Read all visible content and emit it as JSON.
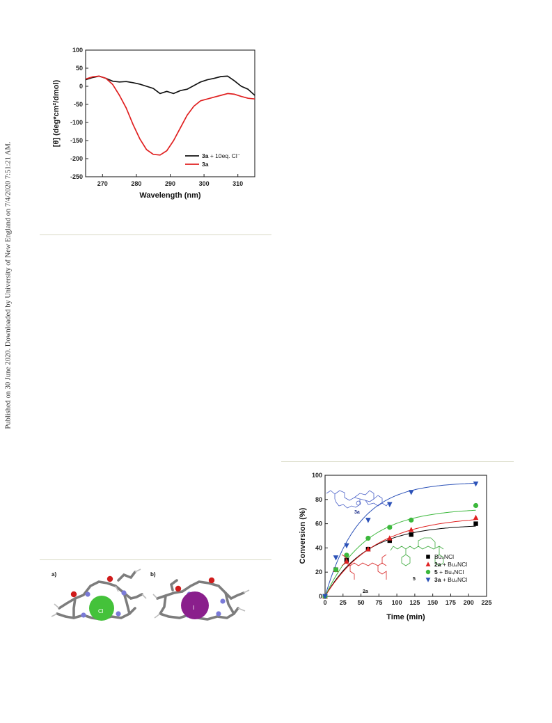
{
  "sidebar": {
    "text": "Published on 30 June 2020. Downloaded by University of New England on 7/4/2020 7:51:21 AM."
  },
  "figure_cd": {
    "colors": {
      "series_a": "#111111",
      "series_b": "#e02020"
    }
  },
  "figure_mol": {
    "label_a": "a)",
    "label_b": "b)",
    "ion_a": "Cl",
    "ion_b": "I",
    "colors": {
      "cl": "#44c23a",
      "i": "#8a1f8c",
      "carbon": "#8a8a8a",
      "oxygen": "#d01c1c",
      "nitrogen": "#7a7ad8"
    }
  },
  "figure_conv": {
    "structure_labels": {
      "s3a": "3a",
      "s2a": "2a",
      "s5": "5"
    },
    "colors": {
      "bu": "#000000",
      "s2a": "#e02020",
      "s5": "#3cb83c",
      "s3a": "#2c52b8"
    }
  },
  "chart_data": [
    {
      "type": "line",
      "title": "",
      "xlabel": "Wavelength (nm)",
      "ylabel": "[θ] (deg*cm²/dmol)",
      "xlim": [
        265,
        315
      ],
      "ylim": [
        -250,
        100
      ],
      "xticks": [
        270,
        280,
        290,
        300,
        310
      ],
      "yticks": [
        100,
        50,
        0,
        -50,
        -100,
        -150,
        -200,
        -250
      ],
      "legend_position": "bottom-right",
      "series": [
        {
          "name": "3a + 10eq. Cl⁻",
          "legend_bold": "3a",
          "legend_rest": " + 10eq. Cl⁻",
          "color": "#111111",
          "x": [
            265,
            267,
            269,
            271,
            273,
            275,
            277,
            279,
            281,
            283,
            285,
            287,
            289,
            291,
            293,
            295,
            297,
            299,
            301,
            303,
            305,
            307,
            309,
            311,
            313,
            315
          ],
          "y": [
            18,
            24,
            28,
            22,
            14,
            12,
            13,
            10,
            6,
            0,
            -6,
            -20,
            -14,
            -20,
            -12,
            -8,
            2,
            12,
            18,
            22,
            27,
            28,
            15,
            0,
            -8,
            -25
          ]
        },
        {
          "name": "3a",
          "legend_bold": "3a",
          "legend_rest": "",
          "color": "#e02020",
          "x": [
            265,
            267,
            269,
            271,
            273,
            275,
            277,
            279,
            281,
            283,
            285,
            287,
            289,
            291,
            293,
            295,
            297,
            299,
            301,
            303,
            305,
            307,
            309,
            311,
            313,
            315
          ],
          "y": [
            20,
            26,
            28,
            22,
            5,
            -25,
            -60,
            -105,
            -145,
            -175,
            -188,
            -190,
            -178,
            -150,
            -115,
            -80,
            -55,
            -40,
            -35,
            -30,
            -25,
            -20,
            -22,
            -28,
            -33,
            -35
          ]
        }
      ]
    },
    {
      "type": "scatter",
      "title": "",
      "xlabel": "Time (min)",
      "ylabel": "Conversion (%)",
      "xlim": [
        0,
        225
      ],
      "ylim": [
        0,
        100
      ],
      "xticks": [
        0,
        25,
        50,
        75,
        100,
        125,
        150,
        175,
        200,
        225
      ],
      "yticks": [
        0,
        20,
        40,
        60,
        80,
        100
      ],
      "legend_position": "bottom-right",
      "series": [
        {
          "name": "Bu₄NCl",
          "legend_bold": "",
          "legend_rest": "Bu₄NCl",
          "marker": "square",
          "color": "#000000",
          "x": [
            0,
            15,
            30,
            60,
            90,
            120,
            210
          ],
          "y": [
            0,
            22,
            30,
            39,
            46,
            51,
            60
          ],
          "fit": {
            "ymax": 59.5,
            "k": 0.0175
          }
        },
        {
          "name": "2a + Bu₄NCl",
          "legend_bold": "2a",
          "legend_rest": " + Bu₄NCl",
          "marker": "triangle-up",
          "color": "#e02020",
          "x": [
            0,
            15,
            30,
            60,
            90,
            120,
            210
          ],
          "y": [
            0,
            22,
            29,
            39,
            48,
            55,
            65
          ],
          "fit": {
            "ymax": 66.5,
            "k": 0.0145
          }
        },
        {
          "name": "5 + Bu₄NCl",
          "legend_bold": "5",
          "legend_rest": " + Bu₄NCl",
          "marker": "circle",
          "color": "#3cb83c",
          "x": [
            0,
            15,
            30,
            60,
            90,
            120,
            210
          ],
          "y": [
            0,
            22,
            34,
            48,
            57,
            63,
            75
          ],
          "fit": {
            "ymax": 73,
            "k": 0.0175
          }
        },
        {
          "name": "3a + Bu₄NCl",
          "legend_bold": "3a",
          "legend_rest": " + Bu₄NCl",
          "marker": "triangle-down",
          "color": "#2c52b8",
          "x": [
            0,
            15,
            30,
            60,
            90,
            120,
            210
          ],
          "y": [
            0,
            32,
            42,
            63,
            76,
            86,
            93
          ],
          "fit": {
            "ymax": 94.5,
            "k": 0.0215
          }
        }
      ]
    }
  ]
}
